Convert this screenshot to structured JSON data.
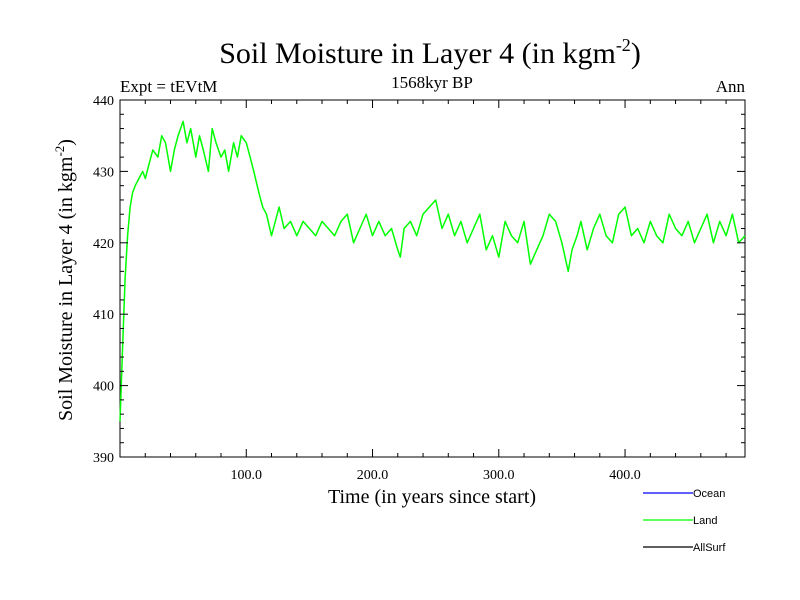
{
  "chart_data": {
    "type": "line",
    "title": "Soil Moisture in Layer 4 (in kgm",
    "title_sup": "-2",
    "title_close": ")",
    "subtitle_left": "Expt = tEVtM",
    "subtitle_center": "1568kyr BP",
    "subtitle_right": "Ann",
    "xlabel": "Time (in years since start)",
    "ylabel": "Soil Moisture in Layer 4 (in kgm",
    "ylabel_sup": "-2",
    "ylabel_close": ")",
    "xlim": [
      0,
      495
    ],
    "ylim": [
      390,
      440
    ],
    "xticks": [
      100,
      200,
      300,
      400
    ],
    "xtick_labels": [
      "100.0",
      "200.0",
      "300.0",
      "400.0"
    ],
    "yticks": [
      390,
      400,
      410,
      420,
      430,
      440
    ],
    "ytick_labels": [
      "390",
      "400",
      "410",
      "420",
      "430",
      "440"
    ],
    "legend": [
      {
        "name": "Ocean",
        "color": "#0000ff"
      },
      {
        "name": "Land",
        "color": "#00ff00"
      },
      {
        "name": "AllSurf",
        "color": "#000000"
      }
    ],
    "series": [
      {
        "name": "Land",
        "color": "#00ff00",
        "x": [
          0,
          2,
          4,
          6,
          8,
          10,
          12,
          15,
          18,
          20,
          23,
          26,
          30,
          33,
          36,
          40,
          43,
          46,
          50,
          53,
          56,
          60,
          63,
          66,
          70,
          73,
          76,
          80,
          83,
          86,
          90,
          93,
          96,
          100,
          103,
          106,
          110,
          113,
          116,
          120,
          123,
          126,
          130,
          135,
          140,
          145,
          150,
          155,
          160,
          165,
          170,
          175,
          180,
          185,
          190,
          195,
          200,
          205,
          210,
          215,
          220,
          222,
          225,
          230,
          235,
          240,
          245,
          250,
          255,
          260,
          265,
          270,
          275,
          280,
          285,
          290,
          295,
          300,
          305,
          310,
          315,
          320,
          325,
          330,
          335,
          340,
          345,
          350,
          355,
          358,
          362,
          365,
          370,
          375,
          380,
          385,
          390,
          395,
          400,
          405,
          410,
          415,
          420,
          425,
          430,
          435,
          440,
          445,
          450,
          455,
          460,
          465,
          470,
          475,
          480,
          485,
          490,
          495
        ],
        "values": [
          395,
          405,
          415,
          421,
          425,
          427,
          428,
          429,
          430,
          429,
          431,
          433,
          432,
          435,
          434,
          430,
          433,
          435,
          437,
          434,
          436,
          432,
          435,
          433,
          430,
          436,
          434,
          432,
          433,
          430,
          434,
          432,
          435,
          434,
          432,
          430,
          427,
          425,
          424,
          421,
          423,
          425,
          422,
          423,
          421,
          423,
          422,
          421,
          423,
          422,
          421,
          423,
          424,
          420,
          422,
          424,
          421,
          423,
          421,
          422,
          419,
          418,
          422,
          423,
          421,
          424,
          425,
          426,
          422,
          424,
          421,
          423,
          420,
          422,
          424,
          419,
          421,
          418,
          423,
          421,
          420,
          423,
          417,
          419,
          421,
          424,
          423,
          420,
          416,
          419,
          421,
          423,
          419,
          422,
          424,
          421,
          420,
          424,
          425,
          421,
          422,
          420,
          423,
          421,
          420,
          424,
          422,
          421,
          423,
          420,
          422,
          424,
          420,
          423,
          421,
          424,
          420,
          421
        ]
      }
    ]
  }
}
